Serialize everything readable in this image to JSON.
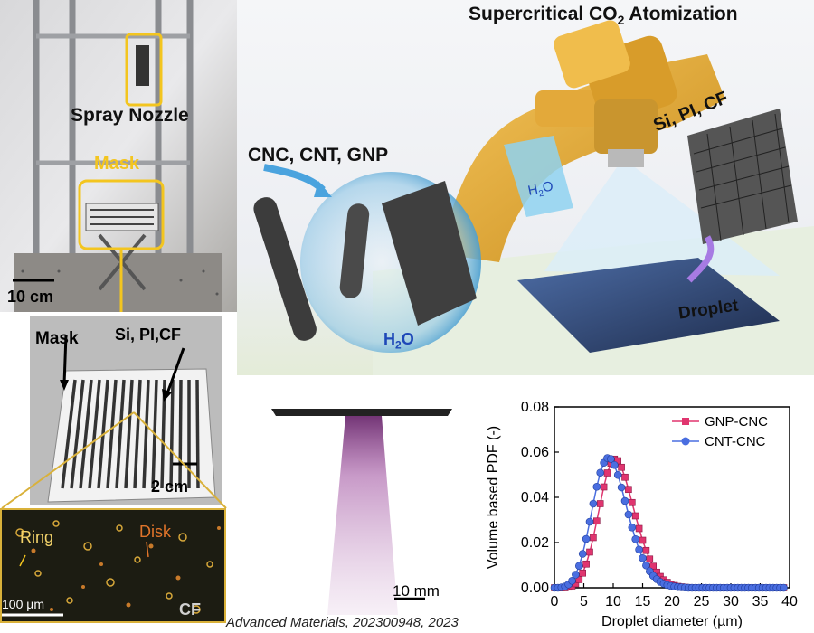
{
  "figure": {
    "apparatus": {
      "spray_nozzle_label": "Spray Nozzle",
      "mask_label": "Mask",
      "scale_label": "10 cm"
    },
    "mask_photo": {
      "mask_label": "Mask",
      "substrate_label": "Si, PI,CF",
      "scale_label": "2 cm"
    },
    "micrograph": {
      "ring_label": "Ring",
      "disk_label": "Disk",
      "scale_label": "100 µm",
      "substrate_label": "CF"
    },
    "schematic": {
      "title": "Supercritical CO",
      "title_sub": "2",
      "title_tail": " Atomization",
      "materials_label": "CNC, CNT, GNP",
      "substrates_label": "Si, PI, CF",
      "droplet_label": "Droplet",
      "water_h": "H",
      "water_sub": "2",
      "water_o": "O"
    },
    "spray_image": {
      "scale_label": "10 mm"
    },
    "citation": "Advanced Materials, 202300948, 2023"
  },
  "chart_data": {
    "type": "scatter",
    "xlabel": "Droplet diameter (µm)",
    "ylabel": "Volume based PDF (-)",
    "xlim": [
      0,
      40
    ],
    "ylim": [
      0,
      0.08
    ],
    "xticks": [
      "0",
      "5",
      "10",
      "15",
      "20",
      "25",
      "30",
      "35",
      "40"
    ],
    "yticks": [
      "0.00",
      "0.02",
      "0.04",
      "0.06",
      "0.08"
    ],
    "legend_position": "top-right",
    "series": [
      {
        "name": "GNP-CNC",
        "color": "#e0356f",
        "marker": "square",
        "x": [
          0,
          0.6,
          1.2,
          1.8,
          2.4,
          3,
          3.6,
          4.2,
          4.8,
          5.4,
          6,
          6.6,
          7.2,
          7.8,
          8.4,
          9,
          9.6,
          10.2,
          10.8,
          11.4,
          12,
          12.6,
          13.2,
          13.8,
          14.4,
          15,
          15.6,
          16.2,
          16.8,
          17.4,
          18,
          18.6,
          19.2,
          19.8,
          20.4,
          21,
          21.6,
          22.2,
          22.8,
          23.4,
          24,
          24.6,
          25.2,
          25.8,
          26.4,
          27,
          27.6,
          28.2,
          28.8,
          29.4,
          30,
          30.6,
          31.2,
          31.8,
          32.4,
          33,
          33.6,
          34.2,
          34.8,
          35.4,
          36,
          36.6,
          37.2,
          37.8,
          38.4,
          39
        ],
        "y": [
          0,
          0,
          0,
          0,
          0.0003,
          0.0008,
          0.0018,
          0.0036,
          0.0065,
          0.0105,
          0.0158,
          0.0222,
          0.0295,
          0.0372,
          0.0446,
          0.0508,
          0.0551,
          0.0569,
          0.0562,
          0.0533,
          0.0489,
          0.0435,
          0.0377,
          0.0318,
          0.0262,
          0.021,
          0.0165,
          0.0127,
          0.0095,
          0.0069,
          0.005,
          0.0035,
          0.0024,
          0.0016,
          0.001,
          0.0006,
          0.0004,
          0.0002,
          0.0001,
          0,
          0,
          0,
          0,
          0,
          0,
          0,
          0,
          0,
          0,
          0,
          0,
          0,
          0,
          0,
          0,
          0,
          0,
          0,
          0,
          0,
          0,
          0,
          0,
          0,
          0,
          0
        ]
      },
      {
        "name": "CNT-CNC",
        "color": "#4a6ee0",
        "marker": "circle",
        "x": [
          0,
          0.6,
          1.2,
          1.8,
          2.4,
          3,
          3.6,
          4.2,
          4.8,
          5.4,
          6,
          6.6,
          7.2,
          7.8,
          8.4,
          9,
          9.6,
          10.2,
          10.8,
          11.4,
          12,
          12.6,
          13.2,
          13.8,
          14.4,
          15,
          15.6,
          16.2,
          16.8,
          17.4,
          18,
          18.6,
          19.2,
          19.8,
          20.4,
          21,
          21.6,
          22.2,
          22.8,
          23.4,
          24,
          24.6,
          25.2,
          25.8,
          26.4,
          27,
          27.6,
          28.2,
          28.8,
          29.4,
          30,
          30.6,
          31.2,
          31.8,
          32.4,
          33,
          33.6,
          34.2,
          34.8,
          35.4,
          36,
          36.6,
          37.2,
          37.8,
          38.4,
          39
        ],
        "y": [
          0,
          0,
          0.0002,
          0.0006,
          0.0015,
          0.0031,
          0.0058,
          0.0097,
          0.015,
          0.0216,
          0.0292,
          0.0372,
          0.0447,
          0.0509,
          0.0553,
          0.0574,
          0.057,
          0.0543,
          0.0499,
          0.0444,
          0.0384,
          0.0324,
          0.0267,
          0.0215,
          0.0169,
          0.0131,
          0.0099,
          0.0073,
          0.0053,
          0.0038,
          0.0026,
          0.0018,
          0.0012,
          0.0008,
          0.0005,
          0.0003,
          0.0002,
          0.0001,
          0,
          0,
          0,
          0,
          0,
          0,
          0,
          0,
          0,
          0,
          0,
          0,
          0,
          0,
          0,
          0,
          0,
          0,
          0,
          0,
          0,
          0,
          0,
          0,
          0,
          0,
          0,
          0
        ]
      }
    ]
  },
  "colors": {
    "gnp": "#e0356f",
    "cnt": "#4a6ee0",
    "highlight": "#f3c51f"
  }
}
